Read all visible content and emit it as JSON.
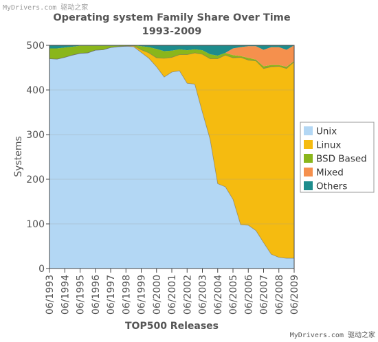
{
  "watermark_top": "MyDrivers.com 驱动之家",
  "watermark_bottom": "MyDrivers.com 驱动之家",
  "chart_data": {
    "type": "area",
    "stacked": true,
    "title": "Operating system Family Share Over Time",
    "subtitle": "1993-2009",
    "xlabel": "TOP500 Releases",
    "ylabel": "Systems",
    "ylim": [
      0,
      500
    ],
    "yticks": [
      0,
      100,
      200,
      300,
      400,
      500
    ],
    "grid": true,
    "legend_position": "right",
    "x": [
      "06/1993",
      "11/1993",
      "06/1994",
      "11/1994",
      "06/1995",
      "11/1995",
      "06/1996",
      "11/1996",
      "06/1997",
      "11/1997",
      "06/1998",
      "11/1998",
      "06/1999",
      "11/1999",
      "06/2000",
      "11/2000",
      "06/2001",
      "11/2001",
      "06/2002",
      "11/2002",
      "06/2003",
      "11/2003",
      "06/2004",
      "11/2004",
      "06/2005",
      "11/2005",
      "06/2006",
      "11/2006",
      "06/2007",
      "11/2007",
      "06/2008",
      "11/2008",
      "06/2009"
    ],
    "xtick_labels": [
      "06/1993",
      "06/1994",
      "06/1995",
      "06/1996",
      "06/1997",
      "06/1998",
      "06/1999",
      "06/2000",
      "06/2001",
      "06/2002",
      "06/2003",
      "06/2004",
      "06/2005",
      "06/2006",
      "06/2007",
      "06/2008",
      "06/2009"
    ],
    "series": [
      {
        "name": "Unix",
        "color": "#b3d7f4",
        "values": [
          470,
          469,
          473,
          478,
          482,
          483,
          489,
          490,
          495,
          497,
          498,
          497,
          484,
          471,
          452,
          429,
          440,
          443,
          415,
          413,
          350,
          290,
          190,
          183,
          155,
          98,
          97,
          85,
          58,
          32,
          25,
          23,
          23
        ]
      },
      {
        "name": "Linux",
        "color": "#f5bb10",
        "values": [
          0,
          0,
          0,
          0,
          0,
          0,
          0,
          0,
          0,
          0,
          0,
          2,
          6,
          12,
          20,
          42,
          33,
          36,
          64,
          70,
          130,
          180,
          280,
          295,
          317,
          375,
          370,
          380,
          390,
          420,
          428,
          425,
          440
        ]
      },
      {
        "name": "BSD Based",
        "color": "#8ab61b",
        "values": [
          23,
          24,
          22,
          19,
          17,
          16,
          10,
          9,
          4,
          2,
          2,
          1,
          8,
          13,
          20,
          16,
          15,
          12,
          10,
          8,
          9,
          10,
          7,
          5,
          6,
          3,
          5,
          3,
          5,
          4,
          3,
          4,
          2
        ]
      },
      {
        "name": "Mixed",
        "color": "#f5904d",
        "values": [
          0,
          0,
          0,
          0,
          0,
          0,
          0,
          0,
          0,
          0,
          0,
          0,
          0,
          0,
          0,
          0,
          0,
          0,
          0,
          0,
          0,
          0,
          0,
          0,
          15,
          20,
          26,
          30,
          37,
          40,
          40,
          38,
          35
        ]
      },
      {
        "name": "Others",
        "color": "#1d8c8c",
        "values": [
          7,
          7,
          5,
          3,
          1,
          1,
          1,
          1,
          1,
          1,
          0,
          0,
          2,
          4,
          8,
          13,
          12,
          9,
          11,
          9,
          11,
          20,
          23,
          17,
          7,
          4,
          2,
          2,
          10,
          4,
          4,
          10,
          0
        ]
      }
    ]
  }
}
